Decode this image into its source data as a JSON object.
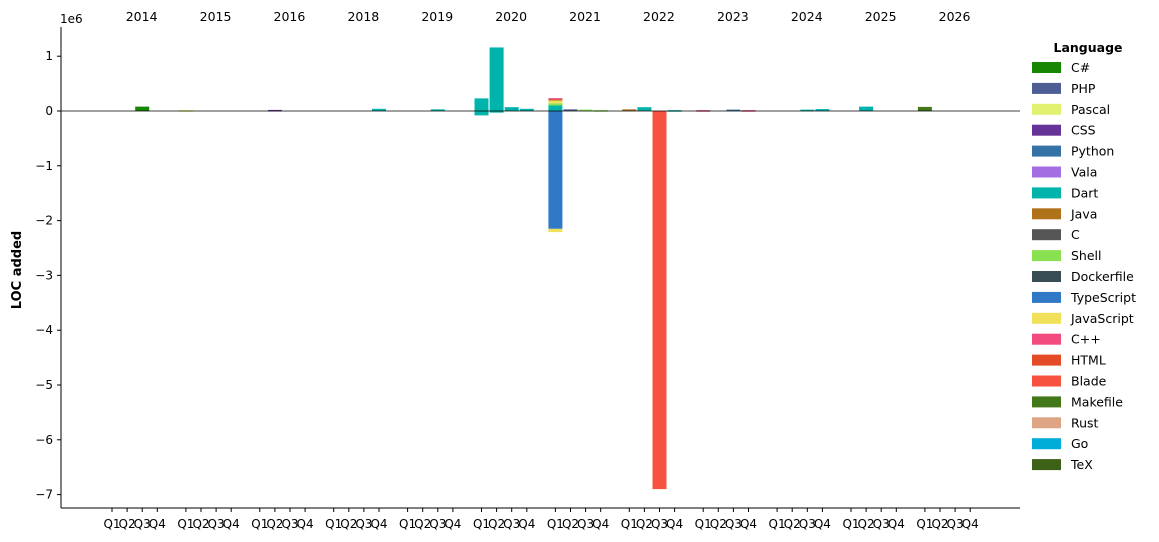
{
  "chart_data": {
    "type": "bar",
    "stacked": true,
    "ylabel": "LOC added",
    "xlabel": "",
    "y_offset_text": "1e6",
    "ylim": [
      -7200000,
      1500000
    ],
    "yticks": [
      1,
      0,
      -1,
      -2,
      -3,
      -4,
      -5,
      -6,
      -7
    ],
    "grid": false,
    "legend": {
      "title": "Language",
      "placement": "right"
    },
    "years": [
      "2014",
      "2015",
      "2016",
      "2018",
      "2019",
      "2020",
      "2021",
      "2022",
      "2023",
      "2024",
      "2025",
      "2026"
    ],
    "quarters": [
      "Q1",
      "Q2",
      "Q3",
      "Q4"
    ],
    "series": [
      {
        "name": "C#",
        "color": "#178600"
      },
      {
        "name": "PHP",
        "color": "#4F5D95"
      },
      {
        "name": "Pascal",
        "color": "#E3F171"
      },
      {
        "name": "CSS",
        "color": "#663399"
      },
      {
        "name": "Python",
        "color": "#3572A5"
      },
      {
        "name": "Vala",
        "color": "#A56DE2"
      },
      {
        "name": "Dart",
        "color": "#00B4AB"
      },
      {
        "name": "Java",
        "color": "#B07219"
      },
      {
        "name": "C",
        "color": "#555555"
      },
      {
        "name": "Shell",
        "color": "#89E051"
      },
      {
        "name": "Dockerfile",
        "color": "#384D54"
      },
      {
        "name": "TypeScript",
        "color": "#3178C6"
      },
      {
        "name": "JavaScript",
        "color": "#F1E05A"
      },
      {
        "name": "C++",
        "color": "#F34B7D"
      },
      {
        "name": "HTML",
        "color": "#E34C26"
      },
      {
        "name": "Blade",
        "color": "#F7523F"
      },
      {
        "name": "Makefile",
        "color": "#427819"
      },
      {
        "name": "Rust",
        "color": "#DEA584"
      },
      {
        "name": "Go",
        "color": "#00ADD8"
      },
      {
        "name": "TeX",
        "color": "#3D6117"
      }
    ],
    "bars": [
      {
        "year": "2014",
        "quarter": "Q3",
        "segments": [
          {
            "lang": "C#",
            "value": 80000
          }
        ]
      },
      {
        "year": "2015",
        "quarter": "Q1",
        "segments": [
          {
            "lang": "Pascal",
            "value": 15000
          }
        ]
      },
      {
        "year": "2016",
        "quarter": "Q2",
        "segments": [
          {
            "lang": "CSS",
            "value": 20000
          }
        ]
      },
      {
        "year": "2018",
        "quarter": "Q4",
        "segments": [
          {
            "lang": "Dart",
            "value": 40000
          }
        ]
      },
      {
        "year": "2019",
        "quarter": "Q3",
        "segments": [
          {
            "lang": "Dart",
            "value": 30000
          }
        ]
      },
      {
        "year": "2020",
        "quarter": "Q1",
        "segments": [
          {
            "lang": "Dart",
            "value": 230000
          },
          {
            "lang": "Dart",
            "value": -80000
          }
        ]
      },
      {
        "year": "2020",
        "quarter": "Q2",
        "segments": [
          {
            "lang": "Dart",
            "value": 1160000
          },
          {
            "lang": "Dart",
            "value": -30000
          }
        ]
      },
      {
        "year": "2020",
        "quarter": "Q3",
        "segments": [
          {
            "lang": "Dart",
            "value": 70000
          }
        ]
      },
      {
        "year": "2020",
        "quarter": "Q4",
        "segments": [
          {
            "lang": "Dart",
            "value": 40000
          }
        ]
      },
      {
        "year": "2021",
        "quarter": "Q1",
        "segments": [
          {
            "lang": "Dart",
            "value": 100000
          },
          {
            "lang": "Shell",
            "value": 40000
          },
          {
            "lang": "JavaScript",
            "value": 50000
          },
          {
            "lang": "Java",
            "value": 30000
          },
          {
            "lang": "C++",
            "value": 15000
          },
          {
            "lang": "TypeScript",
            "value": -2150000
          },
          {
            "lang": "JavaScript",
            "value": -60000
          }
        ]
      },
      {
        "year": "2021",
        "quarter": "Q2",
        "segments": [
          {
            "lang": "PHP",
            "value": 30000
          }
        ]
      },
      {
        "year": "2021",
        "quarter": "Q3",
        "segments": [
          {
            "lang": "Shell",
            "value": 25000
          }
        ]
      },
      {
        "year": "2021",
        "quarter": "Q4",
        "segments": [
          {
            "lang": "Shell",
            "value": 15000
          }
        ]
      },
      {
        "year": "2022",
        "quarter": "Q1",
        "segments": [
          {
            "lang": "Java",
            "value": 30000
          }
        ]
      },
      {
        "year": "2022",
        "quarter": "Q2",
        "segments": [
          {
            "lang": "Dart",
            "value": 70000
          }
        ]
      },
      {
        "year": "2022",
        "quarter": "Q3",
        "segments": [
          {
            "lang": "Blade",
            "value": -6900000
          }
        ]
      },
      {
        "year": "2022",
        "quarter": "Q4",
        "segments": [
          {
            "lang": "Dart",
            "value": 15000
          }
        ]
      },
      {
        "year": "2023",
        "quarter": "Q1",
        "segments": [
          {
            "lang": "C++",
            "value": 15000
          }
        ]
      },
      {
        "year": "2023",
        "quarter": "Q3",
        "segments": [
          {
            "lang": "Python",
            "value": 25000
          }
        ]
      },
      {
        "year": "2023",
        "quarter": "Q4",
        "segments": [
          {
            "lang": "C++",
            "value": 15000
          }
        ]
      },
      {
        "year": "2024",
        "quarter": "Q3",
        "segments": [
          {
            "lang": "Dart",
            "value": 25000
          }
        ]
      },
      {
        "year": "2024",
        "quarter": "Q4",
        "segments": [
          {
            "lang": "Dart",
            "value": 35000
          }
        ]
      },
      {
        "year": "2025",
        "quarter": "Q2",
        "segments": [
          {
            "lang": "Dart",
            "value": 80000
          }
        ]
      },
      {
        "year": "2026",
        "quarter": "Q1",
        "segments": [
          {
            "lang": "Makefile",
            "value": 75000
          }
        ]
      }
    ]
  }
}
